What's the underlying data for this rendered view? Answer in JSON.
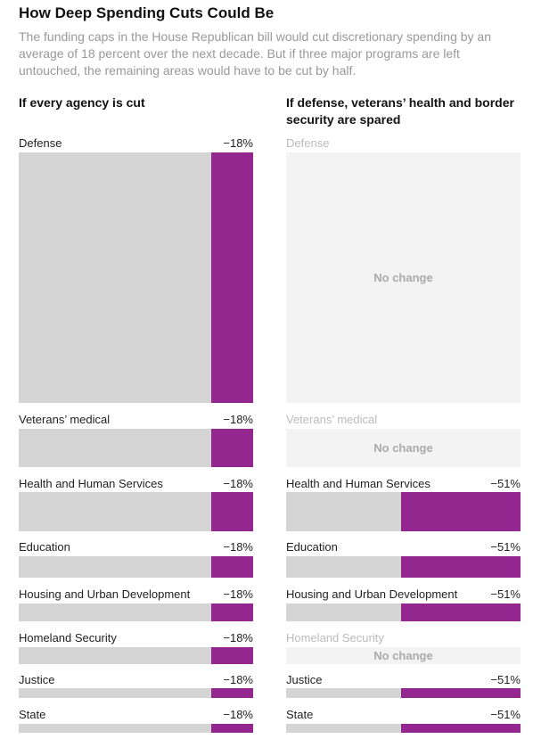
{
  "header": {
    "title": "How Deep Spending Cuts Could Be",
    "subtitle": "The funding caps in the House Republican bill would cut discretionary spending by an average of 18 percent over the next decade. But if three major programs are left untouched, the remaining areas would have to be cut by half."
  },
  "chart_data": [
    {
      "type": "bar",
      "title": "If every agency is cut",
      "categories": [
        "Defense",
        "Veterans’ medical",
        "Health and Human Services",
        "Education",
        "Housing and Urban Development",
        "Homeland Security",
        "Justice",
        "State"
      ],
      "values": [
        -18,
        -18,
        -18,
        -18,
        -18,
        -18,
        -18,
        -18
      ],
      "value_labels": [
        "−18%",
        "−18%",
        "−18%",
        "−18%",
        "−18%",
        "−18%",
        "−18%",
        "−18%"
      ],
      "color": "#93278f",
      "xlim": [
        -100,
        0
      ]
    },
    {
      "type": "bar",
      "title": "If defense, veterans’ health and border security are spared",
      "categories": [
        "Defense",
        "Veterans’ medical",
        "Health and Human Services",
        "Education",
        "Housing and Urban Development",
        "Homeland Security",
        "Justice",
        "State"
      ],
      "values": [
        null,
        null,
        -51,
        -51,
        -51,
        null,
        -51,
        -51
      ],
      "value_labels": [
        null,
        null,
        "−51%",
        "−51%",
        "−51%",
        null,
        "−51%",
        "−51%"
      ],
      "annotation": "No change",
      "color": "#93278f",
      "xlim": [
        -100,
        0
      ]
    }
  ]
}
